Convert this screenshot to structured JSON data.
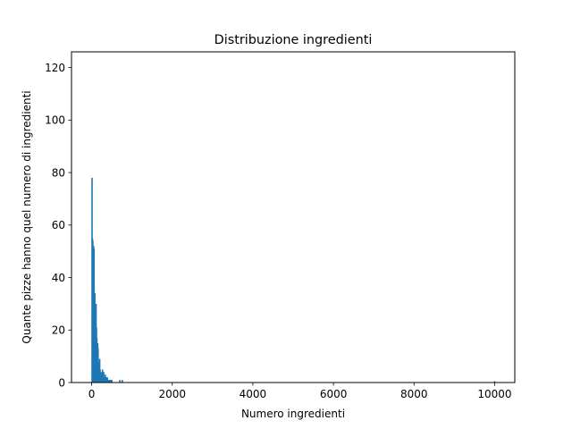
{
  "chart_data": {
    "type": "bar",
    "title": "Distribuzione ingredienti",
    "xlabel": "Numero ingredienti",
    "ylabel": "Quante pizze hanno quel numero di ingredienti",
    "xlim": [
      -500,
      10500
    ],
    "ylim": [
      0,
      126
    ],
    "xticks": [
      0,
      2000,
      4000,
      6000,
      8000,
      10000
    ],
    "yticks": [
      0,
      20,
      40,
      60,
      80,
      100,
      120
    ],
    "grid": false,
    "color": "#1f77b4",
    "x": [
      10,
      20,
      30,
      40,
      50,
      60,
      70,
      80,
      90,
      100,
      110,
      120,
      130,
      140,
      150,
      160,
      170,
      180,
      190,
      200,
      210,
      220,
      230,
      240,
      250,
      260,
      270,
      280,
      290,
      300,
      310,
      320,
      330,
      340,
      350,
      360,
      370,
      380,
      390,
      400,
      420,
      440,
      460,
      480,
      500,
      700,
      760,
      10000
    ],
    "y": [
      78,
      55,
      54,
      52,
      52,
      51,
      34,
      34,
      15,
      12,
      30,
      21,
      17,
      14,
      15,
      13,
      8,
      7,
      6,
      9,
      5,
      3,
      2,
      4,
      3,
      2,
      5,
      3,
      2,
      4,
      2,
      2,
      1,
      3,
      1,
      2,
      1,
      1,
      2,
      1,
      1,
      1,
      1,
      1,
      1,
      1,
      1,
      0.5
    ]
  }
}
